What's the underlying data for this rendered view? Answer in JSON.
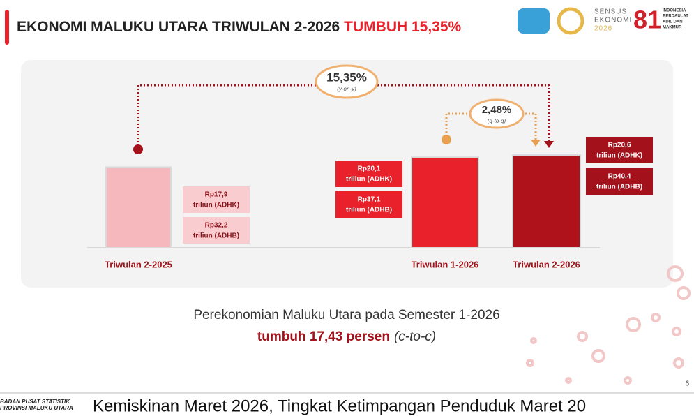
{
  "header": {
    "title": "EKONOMI MALUKU UTARA TRIWULAN 2-2026",
    "highlight": "TUMBUH 15,35%"
  },
  "logos": {
    "sensus": [
      "SENSUS",
      "EKONOMI",
      "2026"
    ],
    "anniversary": "81",
    "motto": [
      "INDONESIA",
      "BERDAULAT",
      "ADIL DAN",
      "MAKMUR"
    ]
  },
  "chart_data": {
    "type": "bar",
    "categories": [
      "Triwulan 2-2025",
      "Triwulan 1-2026",
      "Triwulan 2-2026"
    ],
    "colors": [
      "#f6b8bc",
      "#e8212b",
      "#b0121b"
    ],
    "series": [
      {
        "name": "triliun (ADHK)",
        "values": [
          17.9,
          20.1,
          20.6
        ],
        "value_labels": [
          "Rp17,9",
          "Rp20,1",
          "Rp20,6"
        ]
      },
      {
        "name": "triliun (ADHB)",
        "values": [
          32.2,
          37.1,
          40.4
        ],
        "value_labels": [
          "Rp32,2",
          "Rp37,1",
          "Rp40,4"
        ]
      }
    ],
    "annotations": [
      {
        "value": 15.35,
        "label": "15,35%",
        "note": "(y-on-y)"
      },
      {
        "value": 2.48,
        "label": "2,48%",
        "note": "(q-to-q)"
      }
    ]
  },
  "summary": {
    "line1": "Perekonomian Maluku Utara pada Semester 1-2026",
    "growth": "tumbuh 17,43 persen",
    "note": "(c-to-c)"
  },
  "footer": {
    "org": [
      "BADAN PUSAT STATISTIK",
      "PROVINSI MALUKU UTARA"
    ],
    "ticker": "Kemiskinan Maret 2026, Tingkat Ketimpangan Penduduk Maret 20",
    "page": "6"
  }
}
